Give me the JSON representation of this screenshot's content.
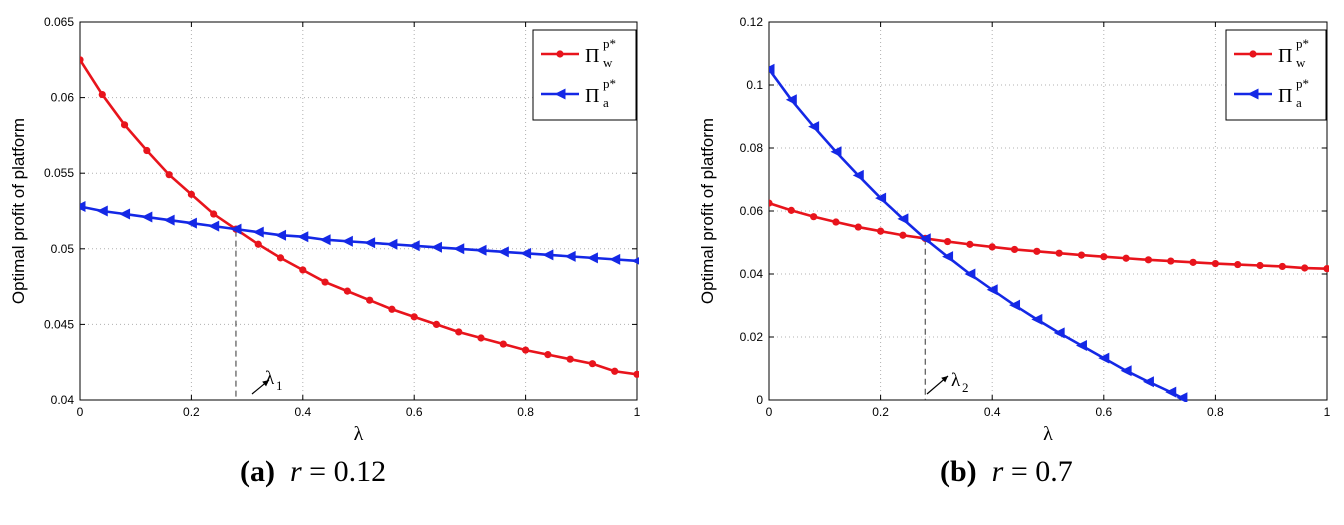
{
  "chart_data": [
    {
      "type": "line",
      "caption": {
        "label": "(a)",
        "var": "r",
        "eq": "=",
        "value": "0.12"
      },
      "xlabel": "λ",
      "ylabel": "Optimal profit of platform",
      "xlim": [
        0,
        1
      ],
      "ylim": [
        0.04,
        0.065
      ],
      "xticks": [
        "0",
        "0.2",
        "0.4",
        "0.6",
        "0.8",
        "1"
      ],
      "xtick_values": [
        0,
        0.2,
        0.4,
        0.6,
        0.8,
        1
      ],
      "yticks": [
        "0.04",
        "0.045",
        "0.05",
        "0.055",
        "0.06",
        "0.065"
      ],
      "ytick_values": [
        0.04,
        0.045,
        0.05,
        0.055,
        0.06,
        0.065
      ],
      "grid": true,
      "legend_position": "top-right",
      "intersection": {
        "x": 0.28,
        "y": 0.0512,
        "label": "λ",
        "subscript": "1"
      },
      "series": [
        {
          "name": "Π_w^{p*}",
          "base": "Π",
          "sup": "p*",
          "sub": "w",
          "color": "#e8141c",
          "marker": "circle",
          "x": [
            0,
            0.04,
            0.08,
            0.12,
            0.16,
            0.2,
            0.24,
            0.28,
            0.32,
            0.36,
            0.4,
            0.44,
            0.48,
            0.52,
            0.56,
            0.6,
            0.64,
            0.68,
            0.72,
            0.76,
            0.8,
            0.84,
            0.88,
            0.92,
            0.96,
            1
          ],
          "values": [
            0.0625,
            0.0602,
            0.0582,
            0.0565,
            0.0549,
            0.0536,
            0.0523,
            0.0513,
            0.0503,
            0.0494,
            0.0486,
            0.0478,
            0.0472,
            0.0466,
            0.046,
            0.0455,
            0.045,
            0.0445,
            0.0441,
            0.0437,
            0.0433,
            0.043,
            0.0427,
            0.0424,
            0.0419,
            0.0417
          ]
        },
        {
          "name": "Π_a^{p*}",
          "base": "Π",
          "sup": "p*",
          "sub": "a",
          "color": "#1428e6",
          "marker": "triangle-left",
          "x": [
            0,
            0.04,
            0.08,
            0.12,
            0.16,
            0.2,
            0.24,
            0.28,
            0.32,
            0.36,
            0.4,
            0.44,
            0.48,
            0.52,
            0.56,
            0.6,
            0.64,
            0.68,
            0.72,
            0.76,
            0.8,
            0.84,
            0.88,
            0.92,
            0.96,
            1
          ],
          "values": [
            0.0528,
            0.0525,
            0.0523,
            0.0521,
            0.0519,
            0.0517,
            0.0515,
            0.0513,
            0.0511,
            0.0509,
            0.0508,
            0.0506,
            0.0505,
            0.0504,
            0.0503,
            0.0502,
            0.0501,
            0.05,
            0.0499,
            0.0498,
            0.0497,
            0.0496,
            0.0495,
            0.0494,
            0.0493,
            0.0492
          ]
        }
      ]
    },
    {
      "type": "line",
      "caption": {
        "label": "(b)",
        "var": "r",
        "eq": "=",
        "value": "0.7"
      },
      "xlabel": "λ",
      "ylabel": "Optimal profit of platform",
      "xlim": [
        0,
        1
      ],
      "ylim": [
        0,
        0.12
      ],
      "xticks": [
        "0",
        "0.2",
        "0.4",
        "0.6",
        "0.8",
        "1"
      ],
      "xtick_values": [
        0,
        0.2,
        0.4,
        0.6,
        0.8,
        1
      ],
      "yticks": [
        "0",
        "0.02",
        "0.04",
        "0.06",
        "0.08",
        "0.1",
        "0.12"
      ],
      "ytick_values": [
        0,
        0.02,
        0.04,
        0.06,
        0.08,
        0.1,
        0.12
      ],
      "grid": true,
      "legend_position": "top-right",
      "intersection": {
        "x": 0.28,
        "y": 0.0512,
        "label": "λ",
        "subscript": "2"
      },
      "series": [
        {
          "name": "Π_w^{p*}",
          "base": "Π",
          "sup": "p*",
          "sub": "w",
          "color": "#e8141c",
          "marker": "circle",
          "x": [
            0,
            0.04,
            0.08,
            0.12,
            0.16,
            0.2,
            0.24,
            0.28,
            0.32,
            0.36,
            0.4,
            0.44,
            0.48,
            0.52,
            0.56,
            0.6,
            0.64,
            0.68,
            0.72,
            0.76,
            0.8,
            0.84,
            0.88,
            0.92,
            0.96,
            1
          ],
          "values": [
            0.0625,
            0.0602,
            0.0582,
            0.0565,
            0.0549,
            0.0536,
            0.0523,
            0.0513,
            0.0503,
            0.0494,
            0.0486,
            0.0478,
            0.0472,
            0.0466,
            0.046,
            0.0455,
            0.045,
            0.0445,
            0.0441,
            0.0437,
            0.0433,
            0.043,
            0.0427,
            0.0424,
            0.0419,
            0.0417
          ]
        },
        {
          "name": "Π_a^{p*}",
          "base": "Π",
          "sup": "p*",
          "sub": "a",
          "color": "#1428e6",
          "marker": "triangle-left",
          "x": [
            0,
            0.04,
            0.08,
            0.12,
            0.16,
            0.2,
            0.24,
            0.28,
            0.32,
            0.36,
            0.4,
            0.44,
            0.48,
            0.52,
            0.56,
            0.6,
            0.64,
            0.68,
            0.72,
            0.74
          ],
          "values": [
            0.105,
            0.0953,
            0.0868,
            0.0788,
            0.0713,
            0.0641,
            0.0575,
            0.0512,
            0.0455,
            0.04,
            0.035,
            0.0301,
            0.0256,
            0.0213,
            0.0173,
            0.0133,
            0.0093,
            0.0058,
            0.0025,
            0.0007
          ]
        }
      ]
    }
  ]
}
